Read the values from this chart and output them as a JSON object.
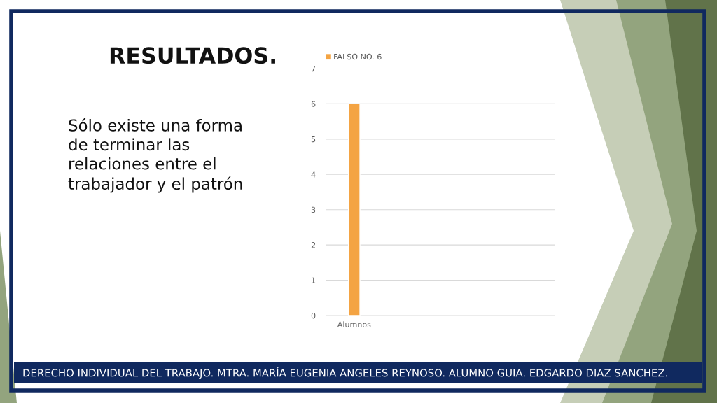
{
  "chart_data": {
    "type": "bar",
    "title": "RESULTADOS.",
    "subtitle": "Sólo existe una forma de terminar las relaciones entre el trabajador y el patrón",
    "annotations": [
      "DERECHO INDIVIDUAL DEL TRABAJO. MTRA. MARÍA EUGENIA ANGELES REYNOSO. ALUMNO GUIA. EDGARDO DIAZ SANCHEZ."
    ],
    "categories": [
      "Alumnos",
      null,
      null,
      null
    ],
    "series": [
      {
        "name": "FALSO NO. 6",
        "color": "#f4a443",
        "values": [
          6,
          null,
          null,
          null
        ]
      }
    ],
    "ylim": [
      0,
      7
    ],
    "yticks": [
      0,
      1,
      2,
      3,
      4,
      5,
      6,
      7
    ],
    "grid": "y",
    "legend": "top left"
  }
}
